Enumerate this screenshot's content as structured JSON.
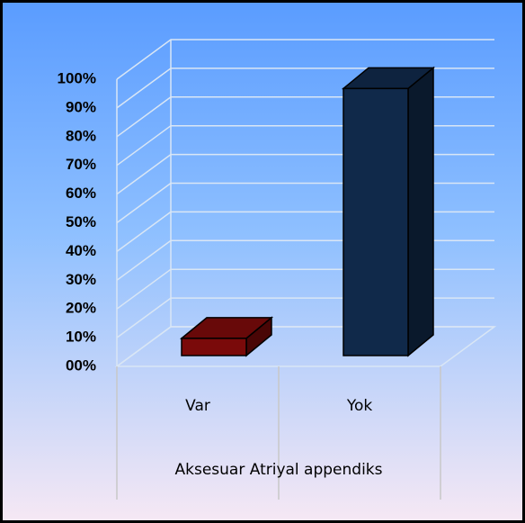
{
  "chart_data": {
    "type": "bar3d",
    "categories": [
      "Var",
      "Yok"
    ],
    "x_label": "Aksesuar Atriyal appendiks",
    "values": [
      6,
      93
    ],
    "colors": [
      "#7a0a0a",
      "#10294a"
    ],
    "ylim": [
      0,
      100
    ],
    "yticks": [
      {
        "value": 0,
        "label": "00%"
      },
      {
        "value": 10,
        "label": "10%"
      },
      {
        "value": 20,
        "label": "20%"
      },
      {
        "value": 30,
        "label": "30%"
      },
      {
        "value": 40,
        "label": "40%"
      },
      {
        "value": 50,
        "label": "50%"
      },
      {
        "value": 60,
        "label": "60%"
      },
      {
        "value": 70,
        "label": "70%"
      },
      {
        "value": 80,
        "label": "80%"
      },
      {
        "value": 90,
        "label": "90%"
      },
      {
        "value": 100,
        "label": "100%"
      }
    ],
    "grid": true
  }
}
